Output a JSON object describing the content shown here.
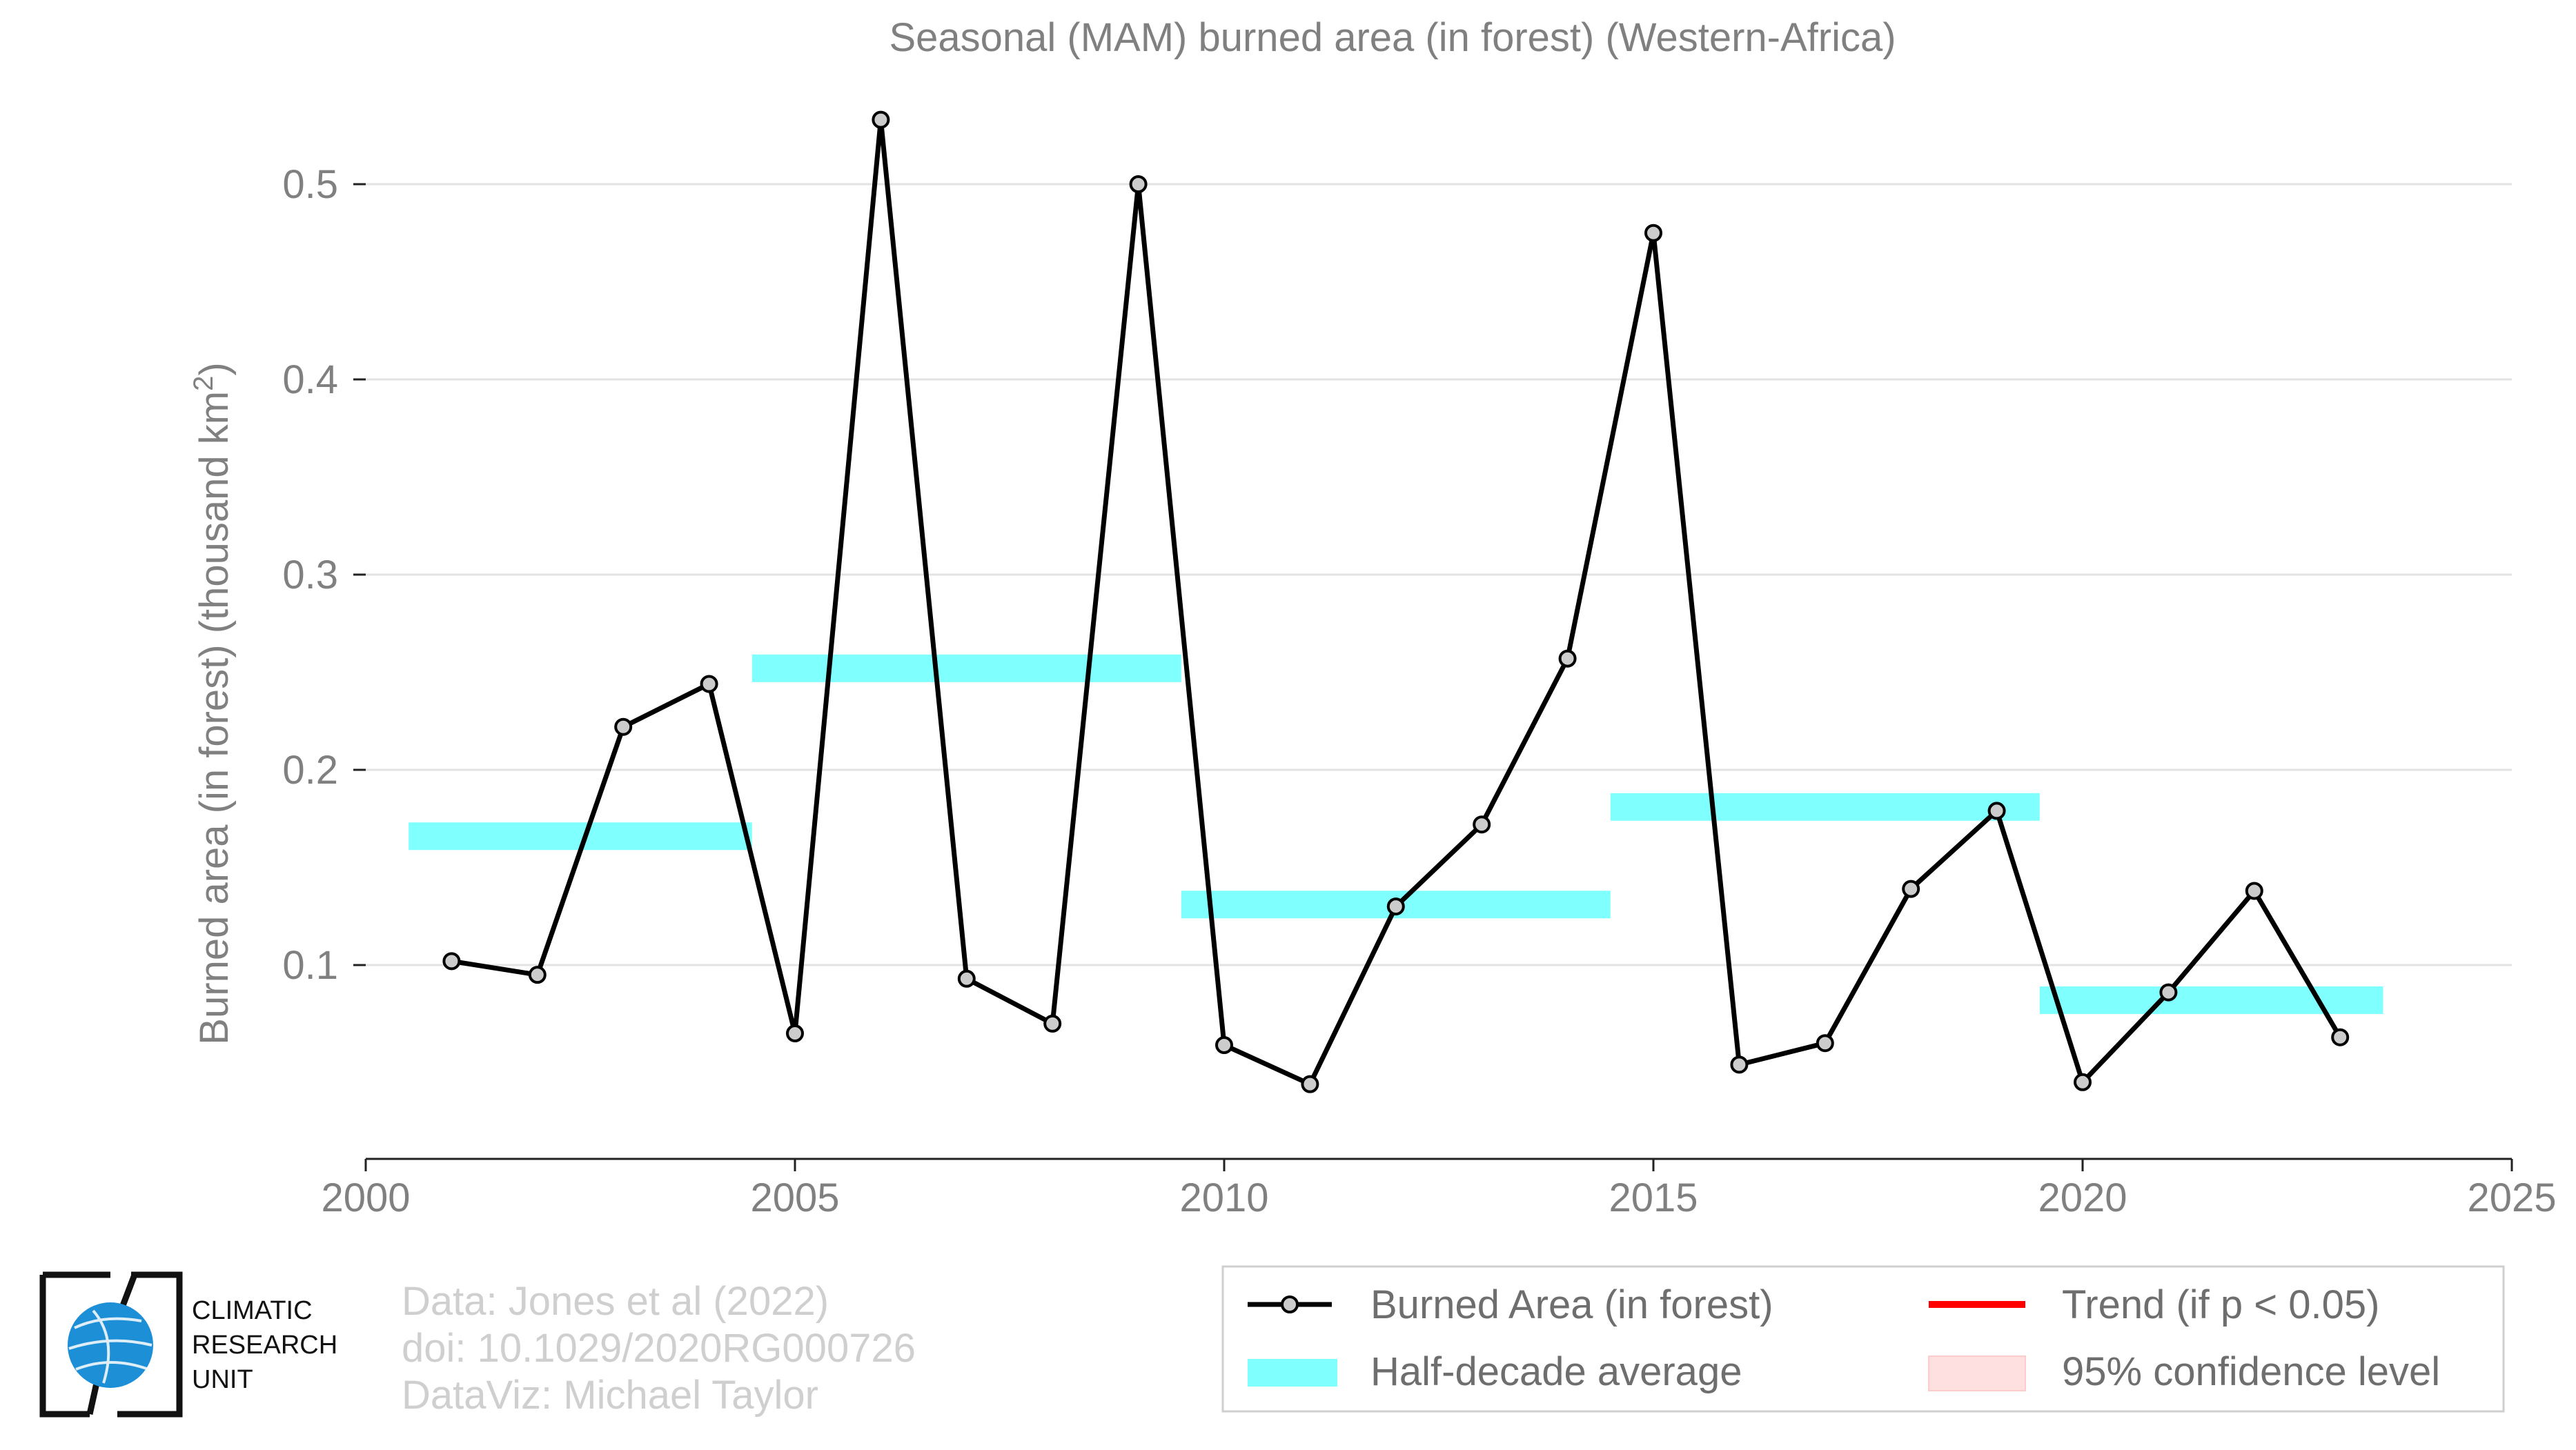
{
  "chart_data": {
    "type": "line",
    "title": "Seasonal (MAM) burned area (in forest) (Western-Africa)",
    "ylabel": "Burned area (in forest) (thousand km",
    "ylabel_sup": "2",
    "ylabel_close": ")",
    "xlim": [
      2000,
      2025
    ],
    "ylim": [
      0,
      0.5
    ],
    "x_ticks": [
      2000,
      2005,
      2010,
      2015,
      2020,
      2025
    ],
    "x_tick_labels": [
      "2000",
      "2005",
      "2010",
      "2015",
      "2020",
      "2025"
    ],
    "y_ticks": [
      0.1,
      0.2,
      0.3,
      0.4,
      0.5
    ],
    "y_tick_labels": [
      "0.1",
      "0.2",
      "0.3",
      "0.4",
      "0.5"
    ],
    "grid": true,
    "legend_position": "bottom-right",
    "series": [
      {
        "name": "Burned Area (in forest)",
        "color": "#000000",
        "marker_fill": "#cccccc",
        "x": [
          2001,
          2002,
          2003,
          2004,
          2005,
          2006,
          2007,
          2008,
          2009,
          2010,
          2011,
          2012,
          2013,
          2014,
          2015,
          2016,
          2017,
          2018,
          2019,
          2020,
          2021,
          2022,
          2023
        ],
        "y": [
          0.102,
          0.095,
          0.222,
          0.244,
          0.065,
          0.533,
          0.093,
          0.07,
          0.5,
          0.059,
          0.039,
          0.13,
          0.172,
          0.257,
          0.475,
          0.049,
          0.06,
          0.139,
          0.179,
          0.04,
          0.086,
          0.138,
          0.063
        ]
      }
    ],
    "half_decade_average": {
      "name": "Half-decade average",
      "color": "#80ffff",
      "segments": [
        {
          "x_start": 2000.5,
          "x_end": 2004.5,
          "y": 0.166
        },
        {
          "x_start": 2004.5,
          "x_end": 2009.5,
          "y": 0.252
        },
        {
          "x_start": 2009.5,
          "x_end": 2014.5,
          "y": 0.131
        },
        {
          "x_start": 2014.5,
          "x_end": 2019.5,
          "y": 0.181
        },
        {
          "x_start": 2019.5,
          "x_end": 2023.5,
          "y": 0.082
        }
      ]
    },
    "legend": [
      {
        "label": "Burned Area (in forest)",
        "kind": "line-marker",
        "color": "#000000"
      },
      {
        "label": "Trend (if p < 0.05)",
        "kind": "line",
        "color": "#ff0000"
      },
      {
        "label": "Half-decade average",
        "kind": "band",
        "color": "#80ffff"
      },
      {
        "label": "95% confidence level",
        "kind": "box",
        "color": "#ffe0e0"
      }
    ]
  },
  "credits": {
    "line1": "Data: Jones et al (2022)",
    "line2": "doi: 10.1029/2020RG000726",
    "line3": "DataViz: Michael Taylor"
  },
  "logo": {
    "line1": "CLIMATIC",
    "line2": "RESEARCH",
    "line3": "UNIT"
  }
}
